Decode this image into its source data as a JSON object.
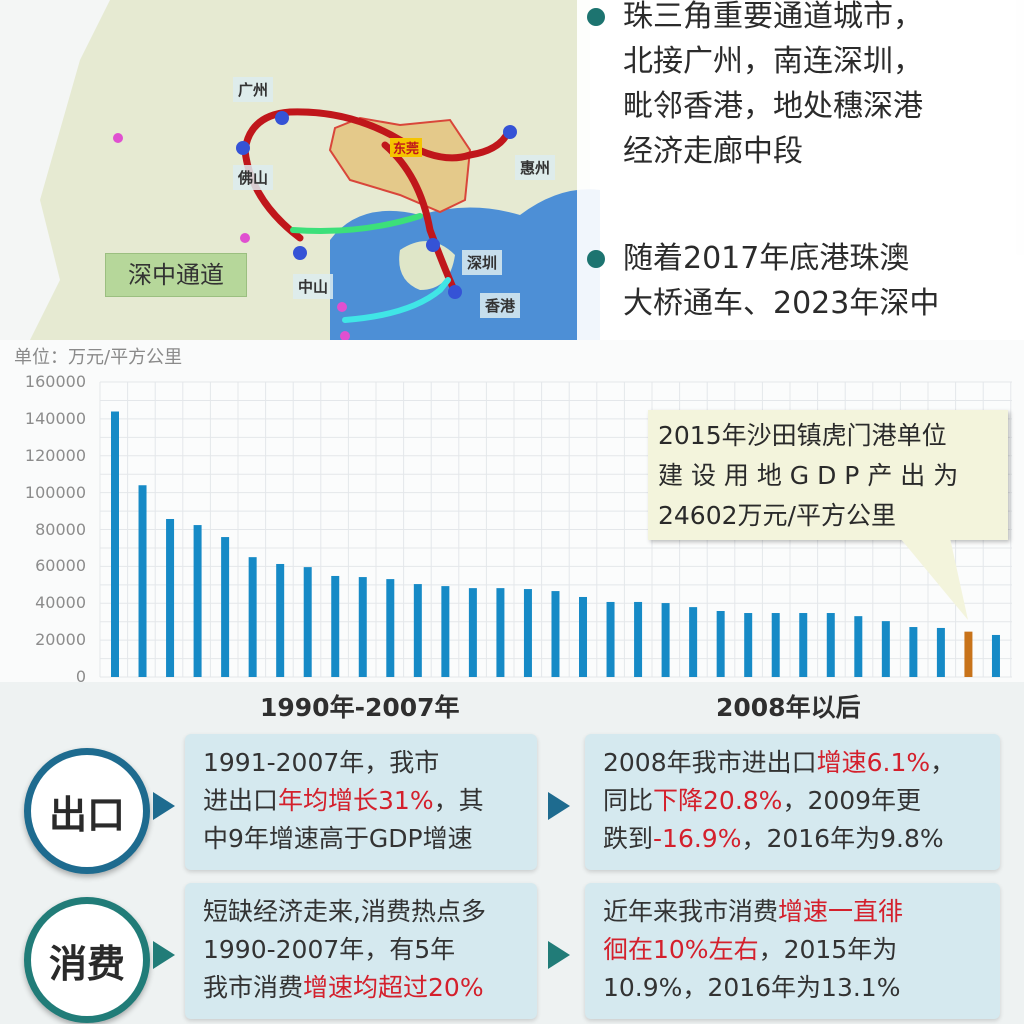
{
  "map": {
    "cities": [
      "广州",
      "佛山",
      "中山",
      "深圳",
      "香港",
      "惠州",
      "东莞"
    ],
    "callout": "深中通道",
    "route_colors": {
      "main": "#c0161b",
      "shenzhong": "#3ce07a",
      "hzm_bridge": "#40e6e6",
      "sea": "#4d8fd6"
    }
  },
  "right_panel": {
    "bullets": [
      {
        "lines": [
          "珠三角重要通道城市，",
          "北接广州，南连深圳，",
          "毗邻香港，地处穗深港",
          "经济走廊中段"
        ]
      },
      {
        "lines": [
          "随着2017年底港珠澳",
          "大桥通车、2023年深中"
        ]
      }
    ]
  },
  "chart_data": {
    "type": "bar",
    "ylabel": "单位：万元/平方公里",
    "ylim": [
      0,
      160000
    ],
    "yticks": [
      "160000",
      "140000",
      "120000",
      "100000",
      "80000",
      "60000",
      "40000",
      "20000",
      "0"
    ],
    "grid": true,
    "values": [
      144000,
      104000,
      85700,
      82400,
      75900,
      65000,
      61300,
      59600,
      54800,
      54200,
      53100,
      50400,
      49300,
      48200,
      48200,
      47700,
      46600,
      43400,
      40700,
      40700,
      40100,
      37900,
      35800,
      34700,
      34700,
      34700,
      34700,
      33000,
      30300,
      27100,
      26600,
      24602,
      22800
    ],
    "highlight_index": 31,
    "colors": {
      "bar": "#168ac6",
      "highlight": "#c8731a"
    },
    "annotation": [
      "2015年沙田镇虎门港单位",
      "建 设 用 地 G D P 产 出 为",
      "24602万元/平方公里"
    ]
  },
  "comparison": {
    "headers": [
      "1990年-2007年",
      "2008年以后"
    ],
    "rows": [
      {
        "label": "出口",
        "color": "#1e6b8f",
        "before": [
          [
            {
              "t": "1991-2007年，我市"
            }
          ],
          [
            {
              "t": "进出口"
            },
            {
              "t": "年均增长31%",
              "red": true
            },
            {
              "t": "，其"
            }
          ],
          [
            {
              "t": "中9年增速高于GDP增速"
            }
          ]
        ],
        "after": [
          [
            {
              "t": "2008年我市进出口"
            },
            {
              "t": "增速6.1%",
              "red": true
            },
            {
              "t": "，"
            }
          ],
          [
            {
              "t": "同比"
            },
            {
              "t": "下降20.8%",
              "red": true
            },
            {
              "t": "，2009年更"
            }
          ],
          [
            {
              "t": "跌到"
            },
            {
              "t": "-16.9%",
              "red": true
            },
            {
              "t": "，2016年为9.8%"
            }
          ]
        ]
      },
      {
        "label": "消费",
        "color": "#217c78",
        "before": [
          [
            {
              "t": "短缺经济走来,消费热点多"
            }
          ],
          [
            {
              "t": "1990-2007年，有5年"
            }
          ],
          [
            {
              "t": "我市消费"
            },
            {
              "t": "增速均超过20%",
              "red": true
            }
          ]
        ],
        "after": [
          [
            {
              "t": "近年来我市消费"
            },
            {
              "t": "增速一直徘",
              "red": true
            }
          ],
          [
            {
              "t": "徊在10%左右",
              "red": true
            },
            {
              "t": "，2015年为"
            }
          ],
          [
            {
              "t": "10.9%，2016年为13.1%"
            }
          ]
        ]
      }
    ]
  }
}
